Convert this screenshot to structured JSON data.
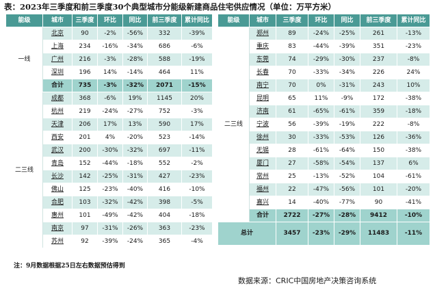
{
  "title": "表：2023年三季度和前三季度30个典型城市分能级新建商品住宅供应情况（单位：万平方米）",
  "headers": [
    "能级",
    "城市",
    "三季度",
    "环比",
    "同比",
    "前三季度",
    "累计同比"
  ],
  "left": {
    "tier1_label": "一线",
    "tier1_rows": [
      [
        "北京",
        "90",
        "-2%",
        "-56%",
        "332",
        "-39%"
      ],
      [
        "上海",
        "234",
        "-16%",
        "-34%",
        "686",
        "-6%"
      ],
      [
        "广州",
        "216",
        "-3%",
        "-28%",
        "588",
        "-19%"
      ],
      [
        "深圳",
        "196",
        "14%",
        "-14%",
        "464",
        "11%"
      ]
    ],
    "tier1_total": [
      "合计",
      "735",
      "-3%",
      "-32%",
      "2071",
      "-15%"
    ],
    "tier23_label": "二三线",
    "tier23_rows": [
      [
        "成都",
        "368",
        "-6%",
        "19%",
        "1145",
        "20%"
      ],
      [
        "杭州",
        "219",
        "-24%",
        "-27%",
        "752",
        "-3%"
      ],
      [
        "天津",
        "206",
        "17%",
        "13%",
        "590",
        "17%"
      ],
      [
        "西安",
        "201",
        "4%",
        "-20%",
        "523",
        "-14%"
      ],
      [
        "武汉",
        "200",
        "-30%",
        "-32%",
        "697",
        "-11%"
      ],
      [
        "青岛",
        "152",
        "-44%",
        "-18%",
        "552",
        "-2%"
      ],
      [
        "长沙",
        "142",
        "-25%",
        "-31%",
        "427",
        "-23%"
      ],
      [
        "佛山",
        "125",
        "-23%",
        "-40%",
        "416",
        "-10%"
      ],
      [
        "合肥",
        "103",
        "-32%",
        "-42%",
        "398",
        "-5%"
      ],
      [
        "惠州",
        "101",
        "-49%",
        "-42%",
        "404",
        "-18%"
      ],
      [
        "南京",
        "97",
        "-31%",
        "-26%",
        "363",
        "-23%"
      ],
      [
        "苏州",
        "92",
        "-39%",
        "-24%",
        "365",
        "-4%"
      ]
    ]
  },
  "right": {
    "tier23_label": "二三线",
    "rows": [
      [
        "郑州",
        "89",
        "-24%",
        "-25%",
        "261",
        "-13%"
      ],
      [
        "重庆",
        "83",
        "-44%",
        "-39%",
        "351",
        "-23%"
      ],
      [
        "东莞",
        "74",
        "-29%",
        "-30%",
        "237",
        "-8%"
      ],
      [
        "长春",
        "70",
        "-33%",
        "-34%",
        "226",
        "24%"
      ],
      [
        "南宁",
        "70",
        "0%",
        "-31%",
        "243",
        "10%"
      ],
      [
        "昆明",
        "65",
        "11%",
        "-9%",
        "172",
        "-38%"
      ],
      [
        "济南",
        "61",
        "-65%",
        "-61%",
        "359",
        "-18%"
      ],
      [
        "宁波",
        "56",
        "-39%",
        "-19%",
        "222",
        "-8%"
      ],
      [
        "徐州",
        "30",
        "-33%",
        "-53%",
        "126",
        "-36%"
      ],
      [
        "无锡",
        "28",
        "-61%",
        "-64%",
        "150",
        "-38%"
      ],
      [
        "厦门",
        "27",
        "-58%",
        "-54%",
        "137",
        "6%"
      ],
      [
        "常州",
        "25",
        "-13%",
        "-52%",
        "104",
        "-61%"
      ],
      [
        "福州",
        "22",
        "-47%",
        "-56%",
        "101",
        "-20%"
      ],
      [
        "嘉兴",
        "14",
        "-40%",
        "-77%",
        "90",
        "-41%"
      ]
    ],
    "tier_total": [
      "合计",
      "2722",
      "-27%",
      "-28%",
      "9412",
      "-10%"
    ],
    "grand_total": [
      "总计",
      "3457",
      "-23%",
      "-29%",
      "11483",
      "-11%"
    ]
  },
  "note": "注：9月数据根据25日左右数据预估得到",
  "source": "数据来源：CRIC中国房地产决策咨询系统"
}
